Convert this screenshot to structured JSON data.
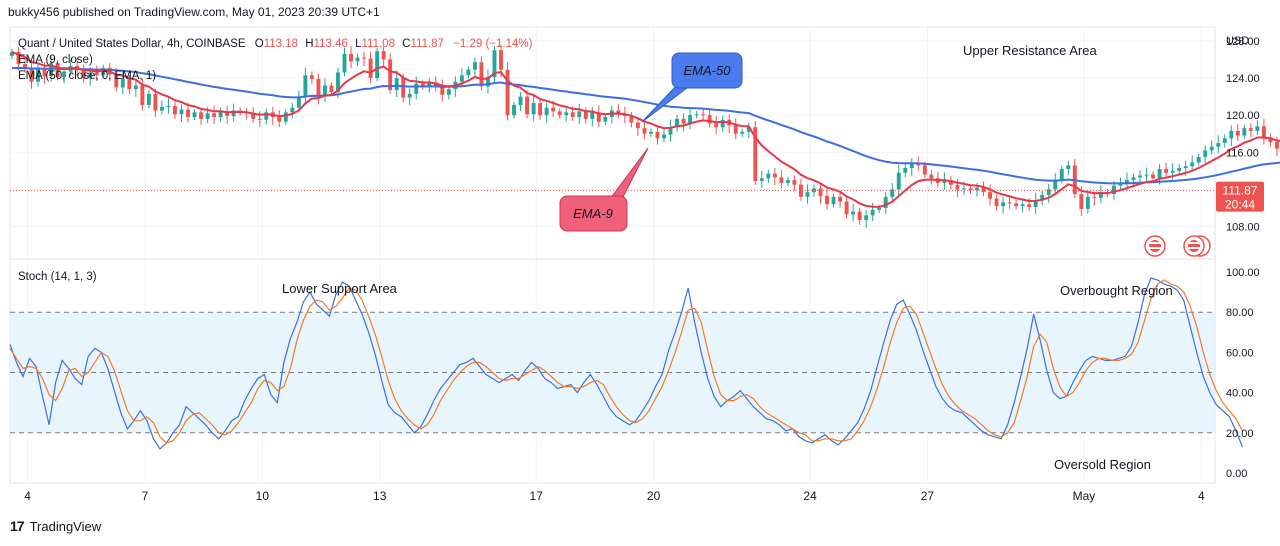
{
  "header": {
    "publisher_line": "bukky456 published on TradingView.com, May 01, 2023 20:39 UTC+1"
  },
  "legend": {
    "symbol": "Quant / United States Dollar, 4h, COINBASE",
    "open_label": "O",
    "open": "113.18",
    "high_label": "H",
    "high": "113.46",
    "low_label": "L",
    "low": "111.08",
    "close_label": "C",
    "close": "111.87",
    "change": "−1.29 (−1.14%)",
    "ema9": "EMA (9, close)",
    "ema50": "EMA (50, close, 0, EMA, 1)"
  },
  "price_axis": {
    "currency": "USD",
    "last_price": "111.87",
    "countdown": "20:44"
  },
  "stoch_legend": "Stoch (14, 1, 3)",
  "footer": {
    "brand": "TradingView"
  },
  "colors": {
    "up": "#26a69a",
    "down": "#ef5350",
    "ema9": "#e8374a",
    "ema50": "#3d6fe0",
    "k_line": "#3d6fe0",
    "d_line": "#f07c24",
    "band": "#e3f2fd",
    "ema50_callout": "#4a7cf0",
    "ema9_callout": "#f0607a"
  },
  "annotations": {
    "upper_resistance": "Upper Resistance Area",
    "lower_support": "Lower Support Area",
    "overbought": "Overbought Region",
    "oversold": "Oversold Region",
    "ema50_callout": "EMA-50",
    "ema9_callout": "EMA-9"
  },
  "chart_data": [
    {
      "type": "candlestick",
      "title": "Quant / United States Dollar, 4h, COINBASE",
      "ylabel": "USD",
      "ylim": [
        104.5,
        129.5
      ],
      "y_ticks": [
        108,
        112,
        116,
        120,
        124,
        128
      ],
      "y_tick_labels": [
        "108.00",
        "112.00",
        "116.00",
        "120.00",
        "124.00",
        "128.00"
      ],
      "x_tick_labels": [
        "4",
        "7",
        "10",
        "13",
        "17",
        "20",
        "24",
        "27",
        "May",
        "4"
      ],
      "x_tick_days": [
        4,
        7,
        10,
        13,
        17,
        20,
        24,
        27,
        31,
        34
      ],
      "day_range": [
        3.55,
        34.35
      ],
      "candle_start_day": 3.6,
      "bars_per_day": 6,
      "last_close": 111.87,
      "closes": [
        126.8,
        125.5,
        125.0,
        123.6,
        125.1,
        124.2,
        125.6,
        124.1,
        124.7,
        125.3,
        125.0,
        124.0,
        124.6,
        124.3,
        125.1,
        124.4,
        123.0,
        123.9,
        122.8,
        123.2,
        121.1,
        122.3,
        120.5,
        120.9,
        121.0,
        120.1,
        120.6,
        119.8,
        120.3,
        119.6,
        120.2,
        119.8,
        120.4,
        119.9,
        120.5,
        120.3,
        120.2,
        119.6,
        119.5,
        120.3,
        119.8,
        119.3,
        120.3,
        120.8,
        122.0,
        124.3,
        123.9,
        122.0,
        123.2,
        122.5,
        124.6,
        126.6,
        125.8,
        126.2,
        126.1,
        124.0,
        126.9,
        126.0,
        122.7,
        124.0,
        121.9,
        122.3,
        123.4,
        123.1,
        123.5,
        123.0,
        122.2,
        122.8,
        123.6,
        124.3,
        124.9,
        125.7,
        123.1,
        124.1,
        127.0,
        124.9,
        120.0,
        121.1,
        122.0,
        120.1,
        121.3,
        120.0,
        120.8,
        120.4,
        120.0,
        120.3,
        119.8,
        120.4,
        119.6,
        120.3,
        119.3,
        119.8,
        120.5,
        120.1,
        119.9,
        119.2,
        118.6,
        118.0,
        118.2,
        117.5,
        117.9,
        118.7,
        119.6,
        119.1,
        120.0,
        120.1,
        120.0,
        119.1,
        118.7,
        119.5,
        118.9,
        118.0,
        118.2,
        118.7,
        112.9,
        113.2,
        113.7,
        113.3,
        112.7,
        113.0,
        112.5,
        111.2,
        111.7,
        112.1,
        111.3,
        110.4,
        111.2,
        110.7,
        109.3,
        109.6,
        108.7,
        109.2,
        109.8,
        110.0,
        111.2,
        112.0,
        113.8,
        114.3,
        114.8,
        114.6,
        113.6,
        113.2,
        112.7,
        113.0,
        112.5,
        112.0,
        112.1,
        111.9,
        112.2,
        111.7,
        111.0,
        110.2,
        110.6,
        110.5,
        110.2,
        110.4,
        110.1,
        110.8,
        111.4,
        112.0,
        113.0,
        114.2,
        114.6,
        111.5,
        109.9,
        111.2,
        111.1,
        111.7,
        111.5,
        112.4,
        112.6,
        113.0,
        113.3,
        113.5,
        113.6,
        113.2,
        114.2,
        113.8,
        114.0,
        114.3,
        114.5,
        114.9,
        115.5,
        116.2,
        116.6,
        117.0,
        117.5,
        118.3,
        117.8,
        118.6,
        118.3,
        118.8,
        117.6,
        117.1,
        116.4,
        116.6,
        115.8,
        116.1,
        113.9,
        115.3,
        113.6,
        112.9,
        111.87
      ],
      "ema9_label": "EMA (9, close)",
      "ema50_label": "EMA (50, close, 0, EMA, 1)"
    },
    {
      "type": "line",
      "title": "Stoch (14, 1, 3)",
      "ylim": [
        0,
        100
      ],
      "y_ticks": [
        0,
        20,
        40,
        60,
        80,
        100
      ],
      "y_tick_labels": [
        "0.00",
        "20.00",
        "40.00",
        "60.00",
        "80.00",
        "100.00"
      ],
      "band": [
        20,
        80
      ],
      "midline": 50,
      "x_start_day": 3.55,
      "points_per_day": 6,
      "series": [
        {
          "key": "k",
          "values": [
            64,
            55,
            48,
            57,
            53,
            38,
            24,
            45,
            56,
            52,
            47,
            44,
            58,
            62,
            60,
            52,
            41,
            30,
            22,
            26,
            31,
            26,
            17,
            12,
            15,
            20,
            24,
            33,
            30,
            27,
            24,
            20,
            17,
            21,
            26,
            28,
            36,
            42,
            47,
            49,
            39,
            35,
            55,
            67,
            75,
            85,
            90,
            84,
            81,
            78,
            89,
            95,
            93,
            86,
            79,
            70,
            59,
            46,
            34,
            30,
            28,
            24,
            20,
            23,
            29,
            36,
            42,
            46,
            50,
            54,
            55,
            57,
            53,
            49,
            47,
            45,
            47,
            49,
            46,
            51,
            55,
            52,
            47,
            45,
            42,
            43,
            44,
            40,
            45,
            49,
            44,
            38,
            32,
            28,
            26,
            24,
            26,
            31,
            36,
            43,
            49,
            61,
            70,
            80,
            92,
            75,
            60,
            47,
            38,
            33,
            36,
            38,
            41,
            37,
            33,
            30,
            27,
            26,
            24,
            21,
            22,
            18,
            16,
            15,
            17,
            19,
            16,
            14,
            17,
            21,
            25,
            32,
            41,
            53,
            65,
            76,
            84,
            86,
            79,
            71,
            61,
            52,
            43,
            37,
            33,
            31,
            30,
            27,
            24,
            21,
            19,
            18,
            17,
            24,
            35,
            48,
            62,
            79,
            66,
            51,
            40,
            37,
            38,
            45,
            51,
            56,
            58,
            57,
            56,
            56,
            57,
            58,
            63,
            75,
            89,
            97,
            96,
            94,
            93,
            91,
            86,
            73,
            60,
            48,
            40,
            34,
            31,
            28,
            21,
            13
          ]
        },
        {
          "key": "d",
          "values": [
            62,
            57,
            52,
            53,
            52,
            47,
            39,
            36,
            42,
            51,
            52,
            48,
            50,
            55,
            60,
            58,
            51,
            41,
            31,
            26,
            26,
            28,
            25,
            18,
            15,
            16,
            20,
            26,
            29,
            30,
            27,
            24,
            20,
            19,
            21,
            25,
            30,
            35,
            42,
            46,
            45,
            41,
            43,
            52,
            66,
            76,
            83,
            86,
            85,
            81,
            83,
            87,
            92,
            91,
            86,
            78,
            69,
            58,
            46,
            37,
            31,
            27,
            24,
            22,
            24,
            29,
            36,
            41,
            46,
            50,
            53,
            55,
            55,
            53,
            50,
            47,
            46,
            47,
            47,
            49,
            51,
            53,
            51,
            48,
            45,
            43,
            43,
            42,
            43,
            45,
            46,
            44,
            38,
            33,
            29,
            26,
            25,
            27,
            31,
            37,
            43,
            51,
            60,
            70,
            81,
            82,
            75,
            61,
            48,
            39,
            36,
            36,
            38,
            39,
            37,
            33,
            30,
            28,
            26,
            24,
            22,
            20,
            19,
            16,
            16,
            17,
            17,
            16,
            16,
            17,
            21,
            26,
            33,
            42,
            53,
            65,
            75,
            82,
            83,
            79,
            70,
            61,
            52,
            44,
            38,
            34,
            31,
            29,
            27,
            24,
            21,
            19,
            18,
            20,
            25,
            36,
            48,
            63,
            69,
            65,
            52,
            43,
            38,
            40,
            45,
            51,
            55,
            57,
            57,
            56,
            56,
            57,
            59,
            65,
            76,
            87,
            94,
            96,
            94,
            93,
            90,
            83,
            73,
            60,
            49,
            41,
            35,
            31,
            27,
            21
          ]
        }
      ]
    }
  ]
}
